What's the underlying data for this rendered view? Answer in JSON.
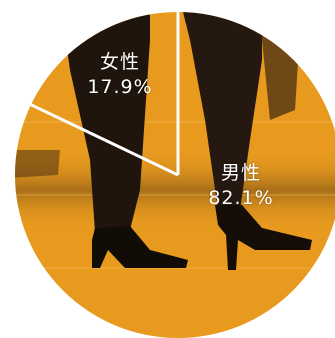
{
  "chart_data": {
    "type": "pie",
    "slices": [
      {
        "name": "女性",
        "value": 17.9,
        "label": "17.9%"
      },
      {
        "name": "男性",
        "value": 82.1,
        "label": "82.1%"
      }
    ],
    "start_angle_deg": -90,
    "direction": "counterclockwise",
    "colors": {
      "background_orange": "#e89a1f",
      "dark": "#1a120b",
      "mid": "#6b4a1c",
      "divider": "#ffffff",
      "label": "#ffffff"
    }
  }
}
